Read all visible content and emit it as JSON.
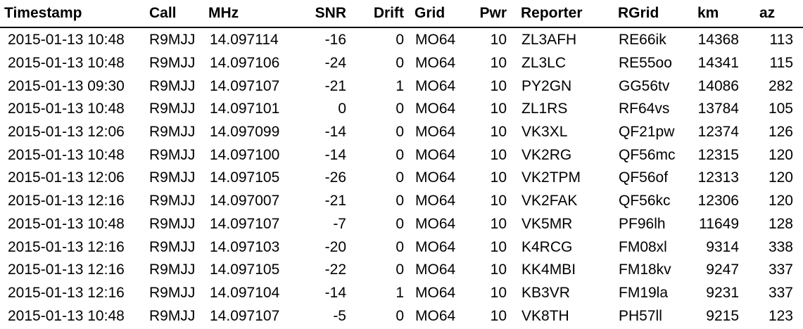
{
  "table": {
    "headers": {
      "timestamp": "Timestamp",
      "call": "Call",
      "mhz": "MHz",
      "snr": "SNR",
      "drift": "Drift",
      "grid": "Grid",
      "pwr": "Pwr",
      "reporter": "Reporter",
      "rgrid": "RGrid",
      "km": "km",
      "az": "az"
    },
    "rows": [
      {
        "timestamp": "2015-01-13 10:48",
        "call": "R9MJJ",
        "mhz": "14.097114",
        "snr": "-16",
        "drift": "0",
        "grid": "MO64",
        "pwr": "10",
        "reporter": "ZL3AFH",
        "rgrid": "RE66ik",
        "km": "14368",
        "az": "113"
      },
      {
        "timestamp": "2015-01-13 10:48",
        "call": "R9MJJ",
        "mhz": "14.097106",
        "snr": "-24",
        "drift": "0",
        "grid": "MO64",
        "pwr": "10",
        "reporter": "ZL3LC",
        "rgrid": "RE55oo",
        "km": "14341",
        "az": "115"
      },
      {
        "timestamp": "2015-01-13 09:30",
        "call": "R9MJJ",
        "mhz": "14.097107",
        "snr": "-21",
        "drift": "1",
        "grid": "MO64",
        "pwr": "10",
        "reporter": "PY2GN",
        "rgrid": "GG56tv",
        "km": "14086",
        "az": "282"
      },
      {
        "timestamp": "2015-01-13 10:48",
        "call": "R9MJJ",
        "mhz": "14.097101",
        "snr": "0",
        "drift": "0",
        "grid": "MO64",
        "pwr": "10",
        "reporter": "ZL1RS",
        "rgrid": "RF64vs",
        "km": "13784",
        "az": "105"
      },
      {
        "timestamp": "2015-01-13 12:06",
        "call": "R9MJJ",
        "mhz": "14.097099",
        "snr": "-14",
        "drift": "0",
        "grid": "MO64",
        "pwr": "10",
        "reporter": "VK3XL",
        "rgrid": "QF21pw",
        "km": "12374",
        "az": "126"
      },
      {
        "timestamp": "2015-01-13 10:48",
        "call": "R9MJJ",
        "mhz": "14.097100",
        "snr": "-14",
        "drift": "0",
        "grid": "MO64",
        "pwr": "10",
        "reporter": "VK2RG",
        "rgrid": "QF56mc",
        "km": "12315",
        "az": "120"
      },
      {
        "timestamp": "2015-01-13 12:06",
        "call": "R9MJJ",
        "mhz": "14.097105",
        "snr": "-26",
        "drift": "0",
        "grid": "MO64",
        "pwr": "10",
        "reporter": "VK2TPM",
        "rgrid": "QF56of",
        "km": "12313",
        "az": "120"
      },
      {
        "timestamp": "2015-01-13 12:16",
        "call": "R9MJJ",
        "mhz": "14.097007",
        "snr": "-21",
        "drift": "0",
        "grid": "MO64",
        "pwr": "10",
        "reporter": "VK2FAK",
        "rgrid": "QF56kc",
        "km": "12306",
        "az": "120"
      },
      {
        "timestamp": "2015-01-13 10:48",
        "call": "R9MJJ",
        "mhz": "14.097107",
        "snr": "-7",
        "drift": "0",
        "grid": "MO64",
        "pwr": "10",
        "reporter": "VK5MR",
        "rgrid": "PF96lh",
        "km": "11649",
        "az": "128"
      },
      {
        "timestamp": "2015-01-13 12:16",
        "call": "R9MJJ",
        "mhz": "14.097103",
        "snr": "-20",
        "drift": "0",
        "grid": "MO64",
        "pwr": "10",
        "reporter": "K4RCG",
        "rgrid": "FM08xl",
        "km": "9314",
        "az": "338"
      },
      {
        "timestamp": "2015-01-13 12:16",
        "call": "R9MJJ",
        "mhz": "14.097105",
        "snr": "-22",
        "drift": "0",
        "grid": "MO64",
        "pwr": "10",
        "reporter": "KK4MBI",
        "rgrid": "FM18kv",
        "km": "9247",
        "az": "337"
      },
      {
        "timestamp": "2015-01-13 12:16",
        "call": "R9MJJ",
        "mhz": "14.097104",
        "snr": "-14",
        "drift": "1",
        "grid": "MO64",
        "pwr": "10",
        "reporter": "KB3VR",
        "rgrid": "FM19la",
        "km": "9231",
        "az": "337"
      },
      {
        "timestamp": "2015-01-13 10:48",
        "call": "R9MJJ",
        "mhz": "14.097107",
        "snr": "-5",
        "drift": "0",
        "grid": "MO64",
        "pwr": "10",
        "reporter": "VK8TH",
        "rgrid": "PH57ll",
        "km": "9215",
        "az": "123"
      }
    ]
  }
}
